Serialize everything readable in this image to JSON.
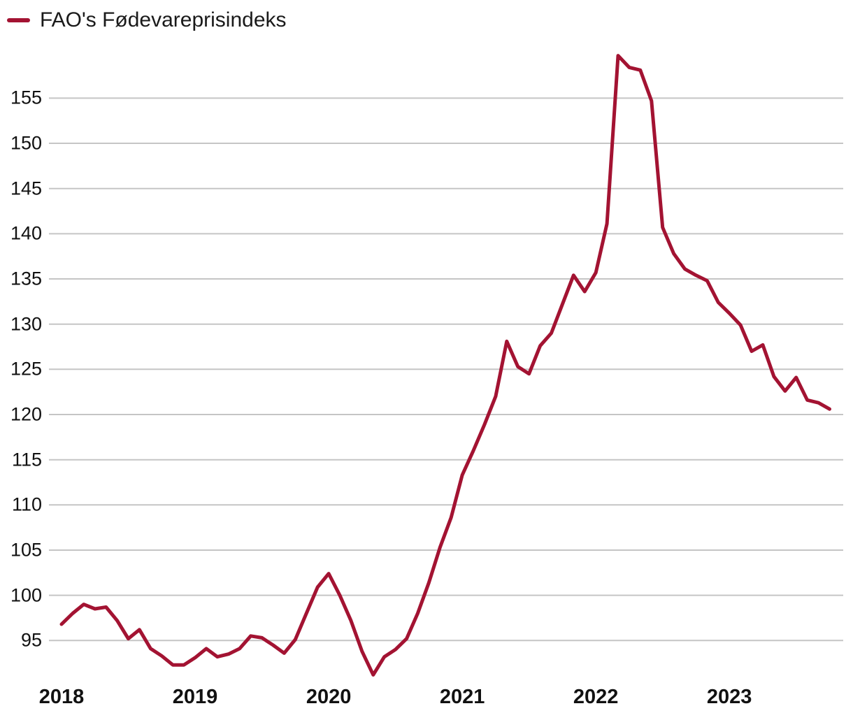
{
  "legend": {
    "label": "FAO's Fødevareprisindeks"
  },
  "colors": {
    "line": "#a31332",
    "grid": "#c5c5c5",
    "text": "#111111",
    "background": "#ffffff"
  },
  "chart_data": {
    "type": "line",
    "title": "",
    "legend_position": "top-left",
    "grid": "horizontal",
    "x_axis": {
      "tick_labels": [
        "2018",
        "2019",
        "2020",
        "2021",
        "2022",
        "2023"
      ],
      "tick_positions_month_index": [
        0,
        12,
        24,
        36,
        48,
        60
      ]
    },
    "y_axis": {
      "ticks": [
        95,
        100,
        105,
        110,
        115,
        120,
        125,
        130,
        135,
        140,
        145,
        150,
        155
      ],
      "range_shown": [
        91,
        160.5
      ]
    },
    "series": [
      {
        "name": "FAO's Fødevareprisindeks",
        "unit": "index",
        "start_month": "2018-01",
        "end_month": "2023-10",
        "frequency": "monthly",
        "values": [
          96.8,
          98.0,
          99.0,
          98.5,
          98.7,
          97.2,
          95.2,
          96.2,
          94.1,
          93.3,
          92.3,
          92.3,
          93.1,
          94.1,
          93.2,
          93.5,
          94.1,
          95.5,
          95.3,
          94.5,
          93.6,
          95.1,
          98.0,
          100.9,
          102.4,
          100.0,
          97.2,
          93.8,
          91.2,
          93.2,
          94.0,
          95.2,
          98.0,
          101.4,
          105.3,
          108.6,
          113.3,
          116.0,
          118.9,
          122.0,
          128.1,
          125.3,
          124.5,
          127.6,
          129.0,
          132.2,
          135.4,
          133.6,
          135.7,
          141.1,
          159.7,
          158.4,
          158.1,
          154.7,
          140.7,
          137.8,
          136.1,
          135.4,
          134.8,
          132.4,
          131.2,
          129.9,
          127.0,
          127.7,
          124.2,
          122.6,
          124.1,
          121.6,
          121.3,
          120.6
        ]
      }
    ]
  }
}
